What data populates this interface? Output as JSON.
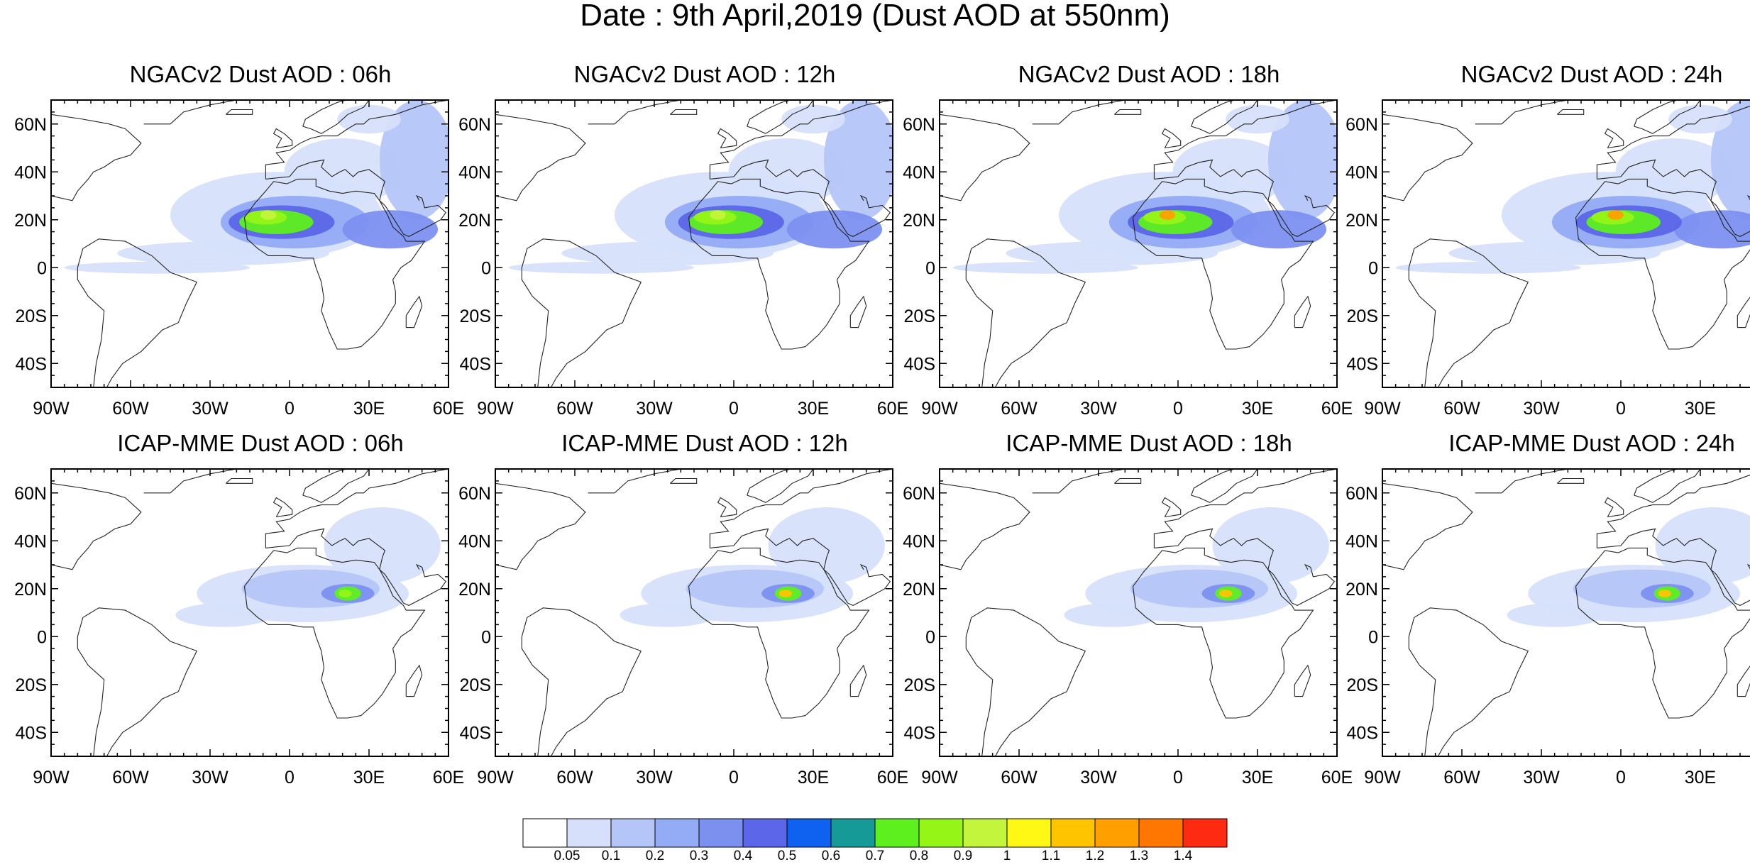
{
  "title": "Date : 9th April,2019 (Dust AOD at 550nm)",
  "lat_labels": [
    "60N",
    "40N",
    "20N",
    "0",
    "20S",
    "40S"
  ],
  "lon_labels": [
    "90W",
    "60W",
    "30W",
    "0",
    "30E",
    "60E"
  ],
  "map_extent": {
    "lon": [
      -90,
      60
    ],
    "lat": [
      -50,
      70
    ]
  },
  "panels": [
    {
      "title": "NGACv2 Dust AOD : 06h",
      "model": "NGACv2",
      "hour": "06h"
    },
    {
      "title": "NGACv2 Dust AOD : 12h",
      "model": "NGACv2",
      "hour": "12h"
    },
    {
      "title": "NGACv2 Dust AOD : 18h",
      "model": "NGACv2",
      "hour": "18h"
    },
    {
      "title": "NGACv2 Dust AOD : 24h",
      "model": "NGACv2",
      "hour": "24h"
    },
    {
      "title": "ICAP-MME Dust AOD : 06h",
      "model": "ICAP-MME",
      "hour": "06h"
    },
    {
      "title": "ICAP-MME Dust AOD : 12h",
      "model": "ICAP-MME",
      "hour": "12h"
    },
    {
      "title": "ICAP-MME Dust AOD : 18h",
      "model": "ICAP-MME",
      "hour": "18h"
    },
    {
      "title": "ICAP-MME Dust AOD : 24h",
      "model": "ICAP-MME",
      "hour": "24h"
    }
  ],
  "colorbar": {
    "labels": [
      "0.05",
      "0.1",
      "0.2",
      "0.3",
      "0.4",
      "0.5",
      "0.6",
      "0.7",
      "0.8",
      "0.9",
      "1",
      "1.1",
      "1.2",
      "1.3",
      "1.4"
    ],
    "colors": [
      "#ffffff",
      "#d6e0fb",
      "#b4c5f8",
      "#94abf5",
      "#7c90f0",
      "#5c66e8",
      "#0f62f0",
      "#159a98",
      "#5ef01e",
      "#95f516",
      "#c3f53c",
      "#fff714",
      "#ffc400",
      "#ffa000",
      "#ff7700",
      "#ff2a12"
    ]
  }
}
